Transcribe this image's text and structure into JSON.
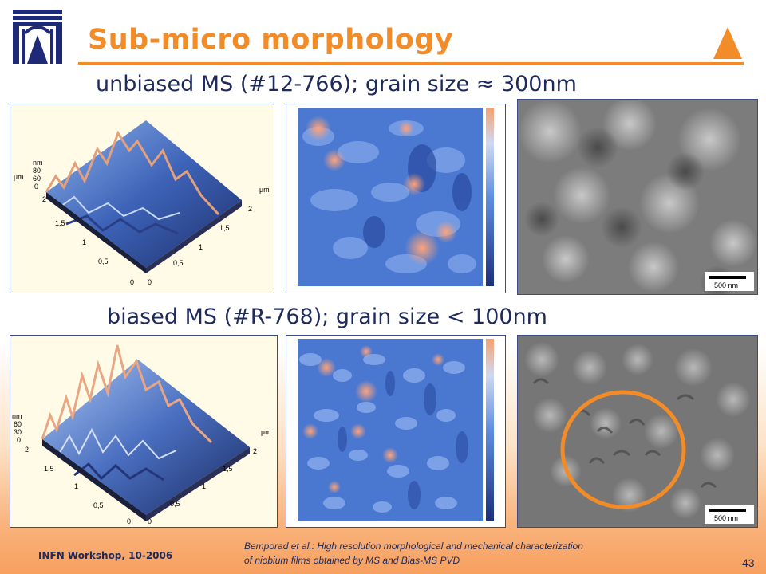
{
  "title": "Sub-micro morphology",
  "sections": [
    {
      "heading": "unbiased MS (#12-766); grain size ≈ 300nm",
      "sem_scale": "500 nm"
    },
    {
      "heading": "biased MS (#R-768); grain size < 100nm",
      "sem_scale": "500 nm"
    }
  ],
  "afm3d": [
    {
      "ticks": [
        "nm",
        "80",
        "60",
        "0",
        "µm",
        "2",
        "1,5",
        "1",
        "0,5",
        "0",
        "0",
        "0,5",
        "1",
        "1,5",
        "2",
        "µm"
      ]
    },
    {
      "ticks": [
        "nm",
        "60",
        "30",
        "0",
        "2",
        "1,5",
        "1",
        "0,5",
        "0",
        "0",
        "0,5",
        "1",
        "1,5",
        "2",
        "µm"
      ]
    }
  ],
  "footer": {
    "event": "INFN Workshop, 10-2006",
    "reference_line1": "Bemporad et al.: High resolution morphological and mechanical characterization",
    "reference_line2": "of niobium films obtained by MS and Bias-MS PVD",
    "page": "43"
  },
  "colors": {
    "accent": "#f28c28",
    "text": "#1e2a5a",
    "ellipse": "#f28c28"
  }
}
